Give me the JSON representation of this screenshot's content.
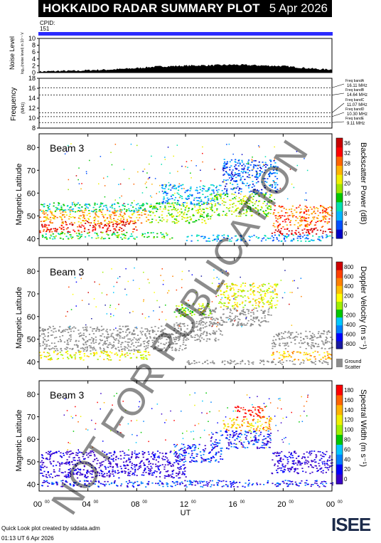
{
  "header": {
    "title": "HOKKAIDO RADAR SUMMARY PLOT",
    "date": "5 Apr 2026"
  },
  "cpid": {
    "label": "CPID:",
    "value": "151"
  },
  "watermark": "NOT FOR PUBLICATION",
  "footer": {
    "line1": "Quick Look plot created by sddata.adm",
    "line2": "01:13 UT  6 Apr 2026"
  },
  "logo": {
    "text": "ISEE"
  },
  "colors": {
    "cpid_bar": "#2b2bff",
    "ground_scatter": "#8c8c8c",
    "power_scale": [
      "#0000c8",
      "#0050ff",
      "#00b4ff",
      "#00e0b0",
      "#00c800",
      "#a0e600",
      "#f0f000",
      "#ffb400",
      "#ff6400",
      "#ff0000",
      "#c80000"
    ],
    "velocity_scale": [
      "#1a1aa0",
      "#0000ff",
      "#0080ff",
      "#00c8ff",
      "#00c800",
      "#a0f000",
      "#ffff00",
      "#ffc000",
      "#ff8000",
      "#ff4000",
      "#d00000"
    ],
    "width_scale": [
      "#3a00c8",
      "#0000ff",
      "#0080ff",
      "#00c8ff",
      "#00c800",
      "#a0f000",
      "#f0f000",
      "#ffb400",
      "#ff6400",
      "#ff0000"
    ]
  },
  "chart_data": [
    {
      "type": "area",
      "panel": "noise",
      "ylabel": "Noise Level",
      "ylabel2": "log₁₀(noise level) in 10⁻¹ V",
      "ylim": [
        0,
        10
      ],
      "yticks": [
        0,
        2,
        4,
        6,
        8,
        10
      ],
      "x": [
        0,
        1,
        2,
        3,
        4,
        5,
        6,
        7,
        8,
        9,
        10,
        11,
        12,
        13,
        14,
        15,
        16,
        17,
        18,
        19,
        20,
        21,
        22,
        23,
        24
      ],
      "values": [
        0.3,
        0.4,
        0.5,
        0.5,
        0.7,
        0.8,
        0.9,
        1.1,
        1.3,
        1.6,
        1.8,
        1.9,
        2.0,
        2.1,
        2.1,
        2.2,
        2.3,
        2.2,
        2.1,
        2.0,
        1.9,
        1.6,
        1.3,
        1.0,
        0.9
      ]
    },
    {
      "type": "line",
      "panel": "frequency",
      "ylabel": "Frequency",
      "yunit": "(MHz)",
      "ylim": [
        8,
        18
      ],
      "yticks": [
        8,
        10,
        12,
        14,
        16,
        18
      ],
      "series": [
        {
          "name": "Freq bandA",
          "label": "16.11 MHz",
          "value": 16.11
        },
        {
          "name": "Freq bandB",
          "label": "14.64 MHz",
          "value": 14.64
        },
        {
          "name": "Freq bandC",
          "label": "11.07 MHz",
          "value": 11.07
        },
        {
          "name": "Freq bandD",
          "label": "10.30 MHz",
          "value": 10.3
        },
        {
          "name": "Freq bandE",
          "label": "9.11 MHz",
          "value": 9.11
        }
      ]
    },
    {
      "type": "heatmap",
      "panel": "power",
      "title": "Beam 3",
      "ylabel": "Magnetic Latitude",
      "ylim": [
        37,
        86
      ],
      "yticks": [
        40,
        50,
        60,
        70,
        80
      ],
      "colorbar_label": "Backscatter Power (dB)",
      "colorbar_ticks": [
        0,
        4,
        8,
        12,
        16,
        20,
        24,
        28,
        32,
        36
      ],
      "bands": [
        {
          "lat0": 43,
          "lat1": 48,
          "t0": 0,
          "t1": 8,
          "level": 9
        },
        {
          "lat0": 47,
          "lat1": 53,
          "t0": 0,
          "t1": 9,
          "level": 7
        },
        {
          "lat0": 52,
          "lat1": 56,
          "t0": 0,
          "t1": 10,
          "level": 3
        },
        {
          "lat0": 40,
          "lat1": 43,
          "t0": 0,
          "t1": 11,
          "level": 4
        },
        {
          "lat0": 47,
          "lat1": 56,
          "t0": 9,
          "t1": 14,
          "level": 5
        },
        {
          "lat0": 55,
          "lat1": 64,
          "t0": 10,
          "t1": 15,
          "level": 2
        },
        {
          "lat0": 50,
          "lat1": 60,
          "t0": 14,
          "t1": 19,
          "level": 5
        },
        {
          "lat0": 60,
          "lat1": 75,
          "t0": 15,
          "t1": 19.5,
          "level": 1
        },
        {
          "lat0": 45,
          "lat1": 55,
          "t0": 19,
          "t1": 24,
          "level": 8
        },
        {
          "lat0": 42,
          "lat1": 45,
          "t0": 19,
          "t1": 24,
          "level": 10
        },
        {
          "lat0": 39,
          "lat1": 42,
          "t0": 12,
          "t1": 24,
          "level": 2
        }
      ]
    },
    {
      "type": "heatmap",
      "panel": "velocity",
      "title": "Beam 3",
      "ylabel": "Magnetic Latitude",
      "ylim": [
        37,
        86
      ],
      "yticks": [
        40,
        50,
        60,
        70,
        80
      ],
      "colorbar_label": "Doppler Velocity (m s⁻¹)",
      "colorbar_ticks": [
        -800,
        -600,
        -400,
        -200,
        0,
        200,
        400,
        600,
        800
      ],
      "ground_scatter_label": [
        "Ground",
        "Scatter"
      ],
      "bands": [
        {
          "lat0": 45,
          "lat1": 52,
          "t0": 0,
          "t1": 12,
          "level": -1
        },
        {
          "lat0": 52,
          "lat1": 56,
          "t0": 0,
          "t1": 11,
          "level": -1
        },
        {
          "lat0": 41,
          "lat1": 45,
          "t0": 0,
          "t1": 9,
          "level": 6
        },
        {
          "lat0": 49,
          "lat1": 58,
          "t0": 11,
          "t1": 15,
          "level": -1
        },
        {
          "lat0": 56,
          "lat1": 64,
          "t0": 13,
          "t1": 19,
          "level": -1
        },
        {
          "lat0": 64,
          "lat1": 75,
          "t0": 14.5,
          "t1": 19.5,
          "level": 6
        },
        {
          "lat0": 60,
          "lat1": 66,
          "t0": 11,
          "t1": 14,
          "level": 5
        },
        {
          "lat0": 46,
          "lat1": 54,
          "t0": 19,
          "t1": 24,
          "level": -1
        },
        {
          "lat0": 41,
          "lat1": 45,
          "t0": 19,
          "t1": 24,
          "level": 7
        },
        {
          "lat0": 39,
          "lat1": 41,
          "t0": 12,
          "t1": 24,
          "level": -1
        }
      ]
    },
    {
      "type": "heatmap",
      "panel": "width",
      "title": "Beam 3",
      "ylabel": "Magnetic Latitude",
      "ylim": [
        37,
        86
      ],
      "yticks": [
        40,
        50,
        60,
        70,
        80
      ],
      "colorbar_label": "Spectral Width (m s⁻¹)",
      "colorbar_ticks": [
        0,
        20,
        40,
        60,
        80,
        100,
        120,
        140,
        160,
        180
      ],
      "bands": [
        {
          "lat0": 43,
          "lat1": 55,
          "t0": 0,
          "t1": 12,
          "level": 0
        },
        {
          "lat0": 50,
          "lat1": 58,
          "t0": 11,
          "t1": 15,
          "level": 1
        },
        {
          "lat0": 56,
          "lat1": 64,
          "t0": 14,
          "t1": 19,
          "level": 1
        },
        {
          "lat0": 64,
          "lat1": 70,
          "t0": 15,
          "t1": 19,
          "level": 7
        },
        {
          "lat0": 70,
          "lat1": 75,
          "t0": 16,
          "t1": 18.5,
          "level": 9
        },
        {
          "lat0": 45,
          "lat1": 55,
          "t0": 19,
          "t1": 24,
          "level": 0
        },
        {
          "lat0": 39,
          "lat1": 42,
          "t0": 0,
          "t1": 24,
          "level": 1
        }
      ]
    }
  ],
  "xaxis": {
    "label": "UT",
    "ticks": [
      {
        "h": 0,
        "main": "00",
        "sup": "00"
      },
      {
        "h": 4,
        "main": "04",
        "sup": "00"
      },
      {
        "h": 8,
        "main": "08",
        "sup": "00"
      },
      {
        "h": 12,
        "main": "12",
        "sup": "00"
      },
      {
        "h": 16,
        "main": "16",
        "sup": "00"
      },
      {
        "h": 20,
        "main": "20",
        "sup": "00"
      },
      {
        "h": 24,
        "main": "00",
        "sup": "00"
      }
    ]
  }
}
